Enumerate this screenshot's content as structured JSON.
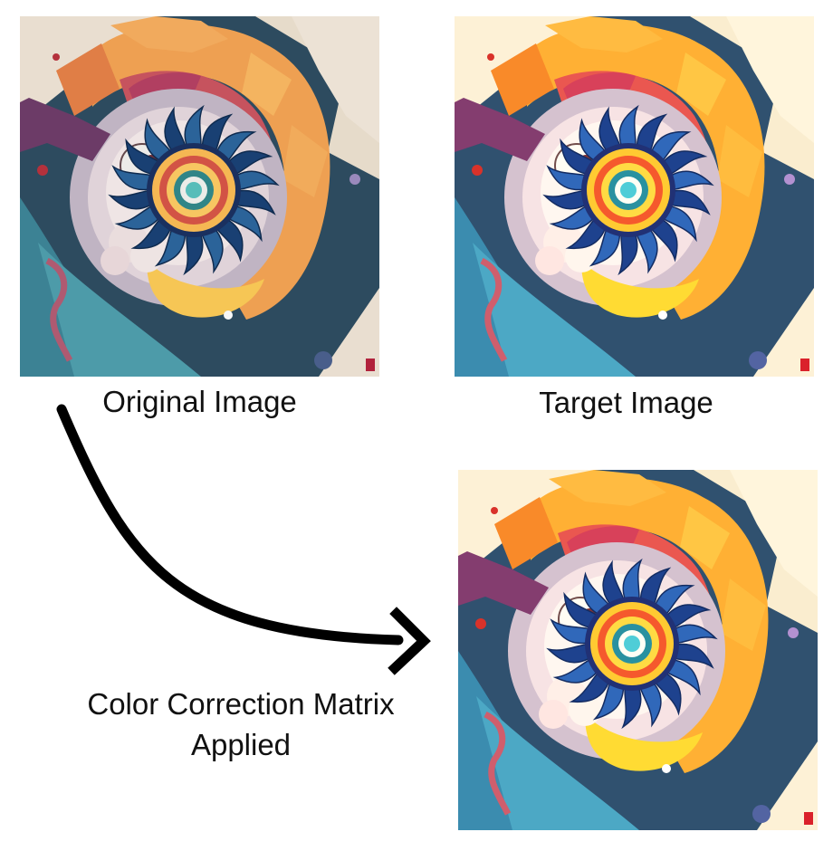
{
  "captions": {
    "original": "Original Image",
    "target": "Target Image",
    "ccm_line1": "Color Correction Matrix",
    "ccm_line2": "Applied"
  },
  "panels": {
    "original": {
      "tone": "muted-cool"
    },
    "target": {
      "tone": "warm-saturated"
    },
    "result": {
      "tone": "warm-saturated"
    }
  },
  "colors": {
    "arrow": "#000000",
    "caption_text": "#111111"
  }
}
